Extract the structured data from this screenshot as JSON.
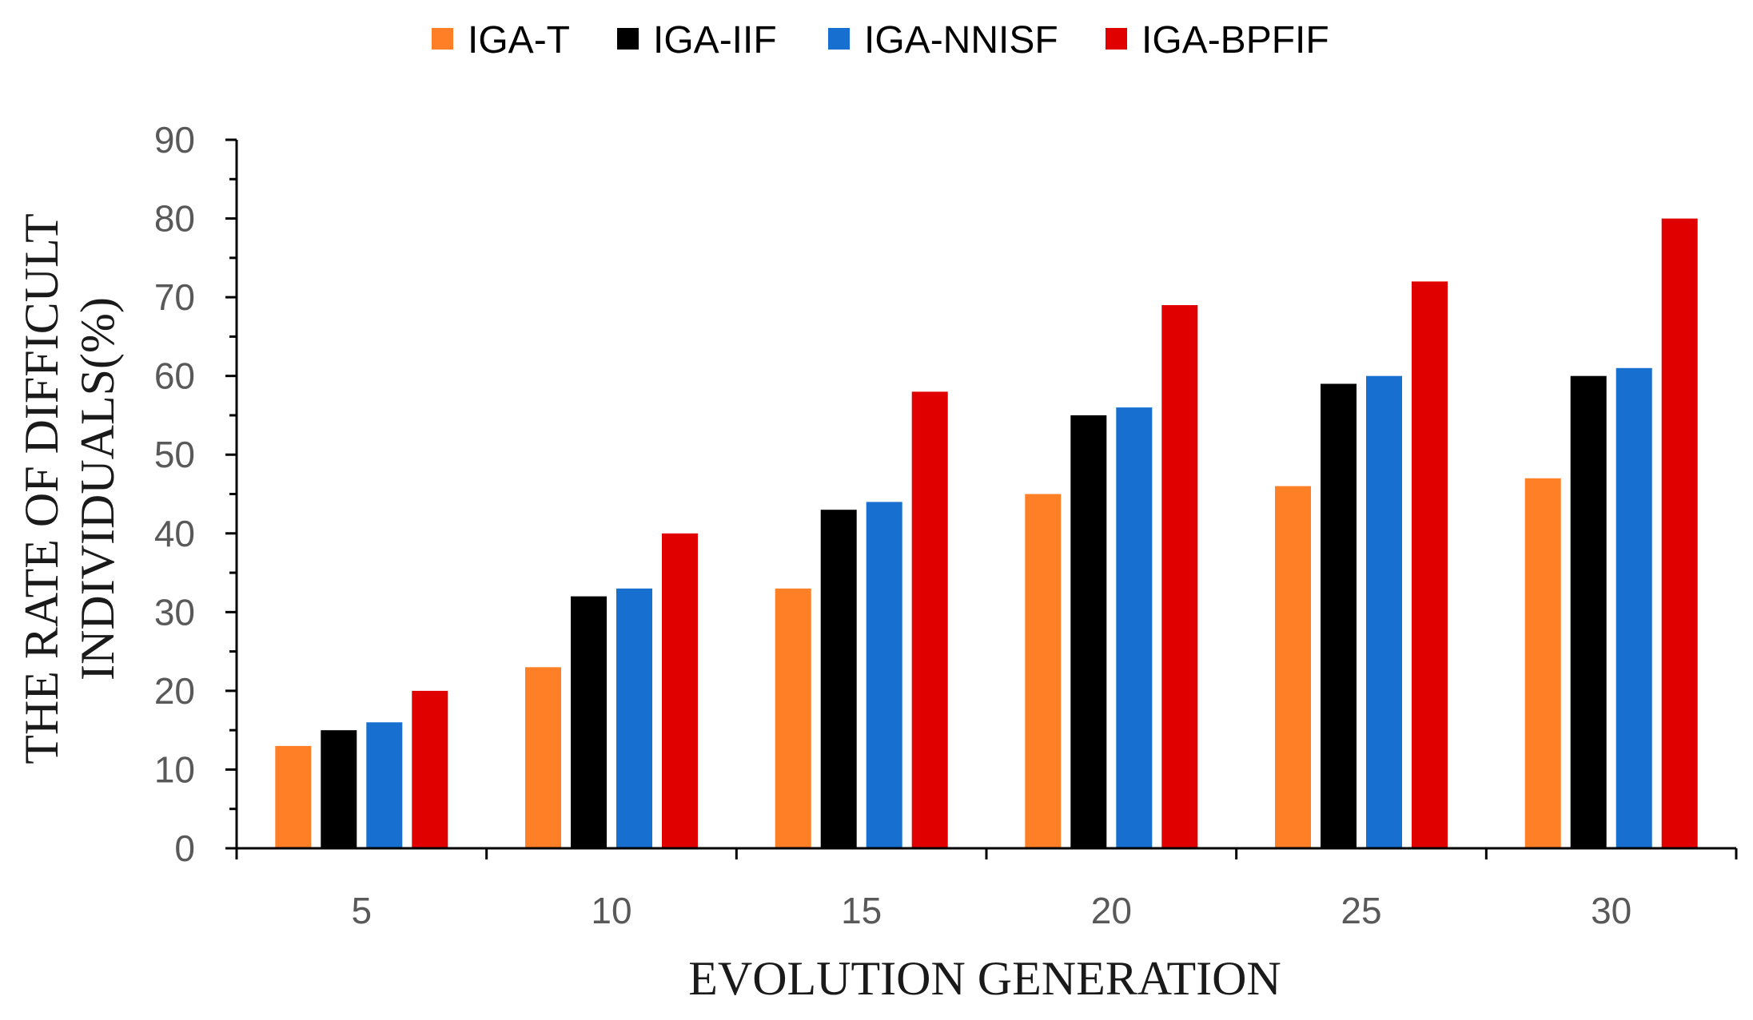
{
  "chart_data": {
    "type": "bar",
    "title": "",
    "xlabel": "EVOLUTION GENERATION",
    "ylabel_lines": [
      "THE RATE OF DIFFICULT",
      "INDIVIDUALS(%)"
    ],
    "ylim": [
      0,
      90
    ],
    "yticks": [
      0,
      10,
      20,
      30,
      40,
      50,
      60,
      70,
      80,
      90
    ],
    "grid": false,
    "legend_position": "top-center",
    "categories": [
      "5",
      "10",
      "15",
      "20",
      "25",
      "30"
    ],
    "series": [
      {
        "name": "IGA-T",
        "color": "#FF7F27",
        "values": [
          13,
          23,
          33,
          45,
          46,
          47
        ]
      },
      {
        "name": "IGA-IIF",
        "color": "#000000",
        "values": [
          15,
          32,
          43,
          55,
          59,
          60
        ]
      },
      {
        "name": "IGA-NNISF",
        "color": "#1770CF",
        "values": [
          16,
          33,
          44,
          56,
          60,
          61
        ]
      },
      {
        "name": "IGA-BPFIF",
        "color": "#E00000",
        "values": [
          20,
          40,
          58,
          69,
          72,
          80
        ]
      }
    ]
  }
}
